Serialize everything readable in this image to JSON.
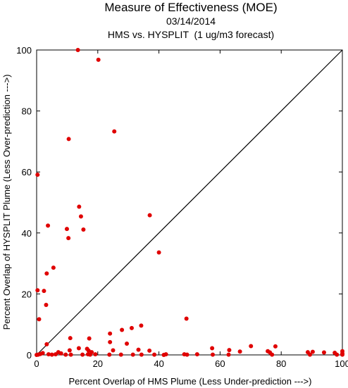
{
  "chart_data": {
    "type": "scatter",
    "title": "Measure of Effectiveness (MOE)",
    "subtitle": "03/14/2014",
    "subtitle2": "HMS vs. HYSPLIT  (1 ug/m3 forecast)",
    "xlabel": "Percent Overlap of HMS Plume (Less Under-prediction --->)",
    "ylabel": "Percent Overlap of HYSPLIT Plume (Less Over-prediction --->)",
    "xlim": [
      0,
      100
    ],
    "ylim": [
      0,
      100
    ],
    "xticks": [
      "0",
      "20",
      "40",
      "60",
      "80",
      "100"
    ],
    "yticks": [
      "0",
      "20",
      "40",
      "60",
      "80",
      "100"
    ],
    "grid": false,
    "reference_line": "y = x",
    "point_color": "#e00000",
    "points": [
      [
        13.5,
        100
      ],
      [
        20.2,
        96.8
      ],
      [
        25.4,
        73.3
      ],
      [
        10.5,
        70.8
      ],
      [
        0.3,
        59.1
      ],
      [
        13.9,
        48.6
      ],
      [
        14.5,
        45.4
      ],
      [
        37.0,
        45.8
      ],
      [
        3.7,
        42.4
      ],
      [
        9.9,
        41.3
      ],
      [
        15.3,
        41.1
      ],
      [
        10.4,
        38.3
      ],
      [
        40.0,
        33.6
      ],
      [
        5.5,
        28.6
      ],
      [
        3.3,
        26.7
      ],
      [
        0.3,
        21.2
      ],
      [
        2.4,
        21.0
      ],
      [
        3.1,
        16.4
      ],
      [
        0.8,
        11.7
      ],
      [
        49.0,
        11.9
      ],
      [
        34.2,
        9.6
      ],
      [
        31.1,
        8.8
      ],
      [
        27.9,
        8.2
      ],
      [
        24.0,
        7.0
      ],
      [
        11.0,
        5.5
      ],
      [
        17.2,
        5.4
      ],
      [
        24.0,
        4.2
      ],
      [
        29.5,
        3.7
      ],
      [
        3.3,
        3.5
      ],
      [
        70.1,
        2.9
      ],
      [
        78.1,
        2.8
      ],
      [
        57.4,
        2.2
      ],
      [
        63.0,
        1.6
      ],
      [
        66.5,
        1.1
      ],
      [
        75.6,
        1.2
      ],
      [
        76.3,
        0.8
      ],
      [
        88.7,
        0.9
      ],
      [
        90.3,
        1.0
      ],
      [
        94.0,
        0.8
      ],
      [
        97.5,
        0.7
      ],
      [
        100,
        1.2
      ],
      [
        100,
        0.5
      ],
      [
        100,
        0.1
      ],
      [
        13.8,
        2.2
      ],
      [
        16.5,
        2.0
      ],
      [
        17.0,
        1.4
      ],
      [
        25.0,
        1.5
      ],
      [
        33.3,
        1.7
      ],
      [
        36.9,
        1.4
      ],
      [
        10.8,
        1.5
      ],
      [
        7.1,
        0.9
      ],
      [
        8.0,
        0.5
      ],
      [
        2.0,
        0.6
      ],
      [
        1.2,
        0.3
      ],
      [
        0.0,
        0.0
      ],
      [
        0.5,
        0.1
      ],
      [
        3.9,
        0.2
      ],
      [
        5.0,
        0.1
      ],
      [
        6.2,
        0.2
      ],
      [
        9.5,
        0.1
      ],
      [
        11.2,
        0.1
      ],
      [
        15.0,
        0.1
      ],
      [
        16.8,
        0.2
      ],
      [
        17.5,
        0.1
      ],
      [
        18.0,
        0.9
      ],
      [
        19.2,
        0.2
      ],
      [
        23.8,
        0.1
      ],
      [
        27.6,
        0.1
      ],
      [
        31.5,
        0.1
      ],
      [
        34.3,
        0.1
      ],
      [
        38.5,
        0.1
      ],
      [
        41.6,
        0.0
      ],
      [
        42.3,
        0.2
      ],
      [
        48.3,
        0.2
      ],
      [
        49.2,
        0.1
      ],
      [
        52.5,
        0.2
      ],
      [
        57.6,
        0.1
      ],
      [
        62.8,
        0.1
      ],
      [
        77.0,
        0.1
      ],
      [
        89.4,
        0.1
      ],
      [
        98.2,
        0.1
      ]
    ]
  }
}
